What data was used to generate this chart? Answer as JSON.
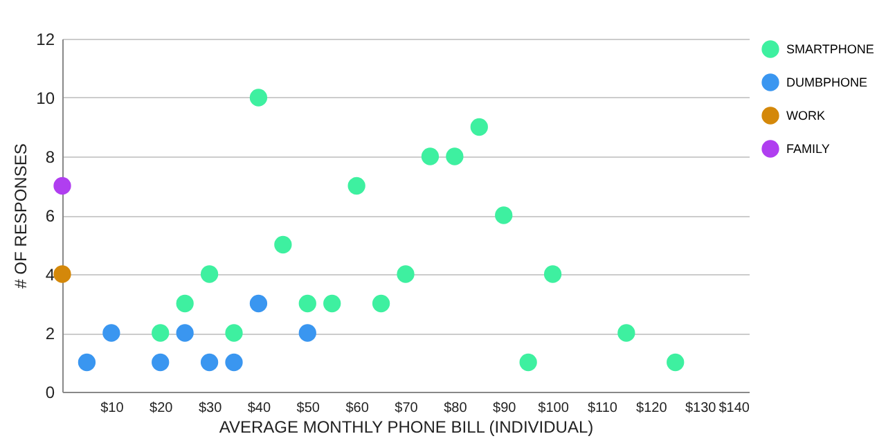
{
  "chart_data": {
    "type": "scatter",
    "xlabel": "AVERAGE MONTHLY PHONE BILL (INDIVIDUAL)",
    "ylabel": "# OF RESPONSES",
    "series": [
      {
        "name": "SMARTPHONE",
        "color": "#3ef0a0",
        "x": [
          20,
          25,
          30,
          35,
          40,
          45,
          50,
          55,
          60,
          65,
          70,
          75,
          80,
          85,
          90,
          95,
          100,
          115,
          125
        ],
        "values": [
          2,
          3,
          4,
          2,
          10,
          5,
          3,
          3,
          7,
          3,
          4,
          8,
          8,
          9,
          6,
          1,
          4,
          2,
          1
        ]
      },
      {
        "name": "DUMBPHONE",
        "color": "#3a96f0",
        "x": [
          5,
          10,
          20,
          25,
          30,
          35,
          40,
          50
        ],
        "values": [
          1,
          2,
          1,
          2,
          1,
          1,
          3,
          2
        ]
      },
      {
        "name": "WORK",
        "color": "#d4880a",
        "x": [
          0
        ],
        "values": [
          4
        ]
      },
      {
        "name": "FAMILY",
        "color": "#b03ef0",
        "x": [
          0
        ],
        "values": [
          7
        ]
      }
    ],
    "xlim": [
      0,
      140
    ],
    "xticks": [
      {
        "value": 10,
        "label": "$10"
      },
      {
        "value": 20,
        "label": "$20"
      },
      {
        "value": 30,
        "label": "$30"
      },
      {
        "value": 40,
        "label": "$40"
      },
      {
        "value": 50,
        "label": "$50"
      },
      {
        "value": 60,
        "label": "$60"
      },
      {
        "value": 70,
        "label": "$70"
      },
      {
        "value": 80,
        "label": "$80"
      },
      {
        "value": 90,
        "label": "$90"
      },
      {
        "value": 100,
        "label": "$100"
      },
      {
        "value": 110,
        "label": "$110"
      },
      {
        "value": 120,
        "label": "$120"
      },
      {
        "value": 130,
        "label": "$130"
      },
      {
        "value": 140,
        "label": "$140"
      }
    ],
    "ylim": [
      0,
      12
    ],
    "yticks": [
      0,
      2,
      4,
      6,
      8,
      10,
      12
    ],
    "grid": "y",
    "legend": "top right",
    "marker": "circle"
  }
}
